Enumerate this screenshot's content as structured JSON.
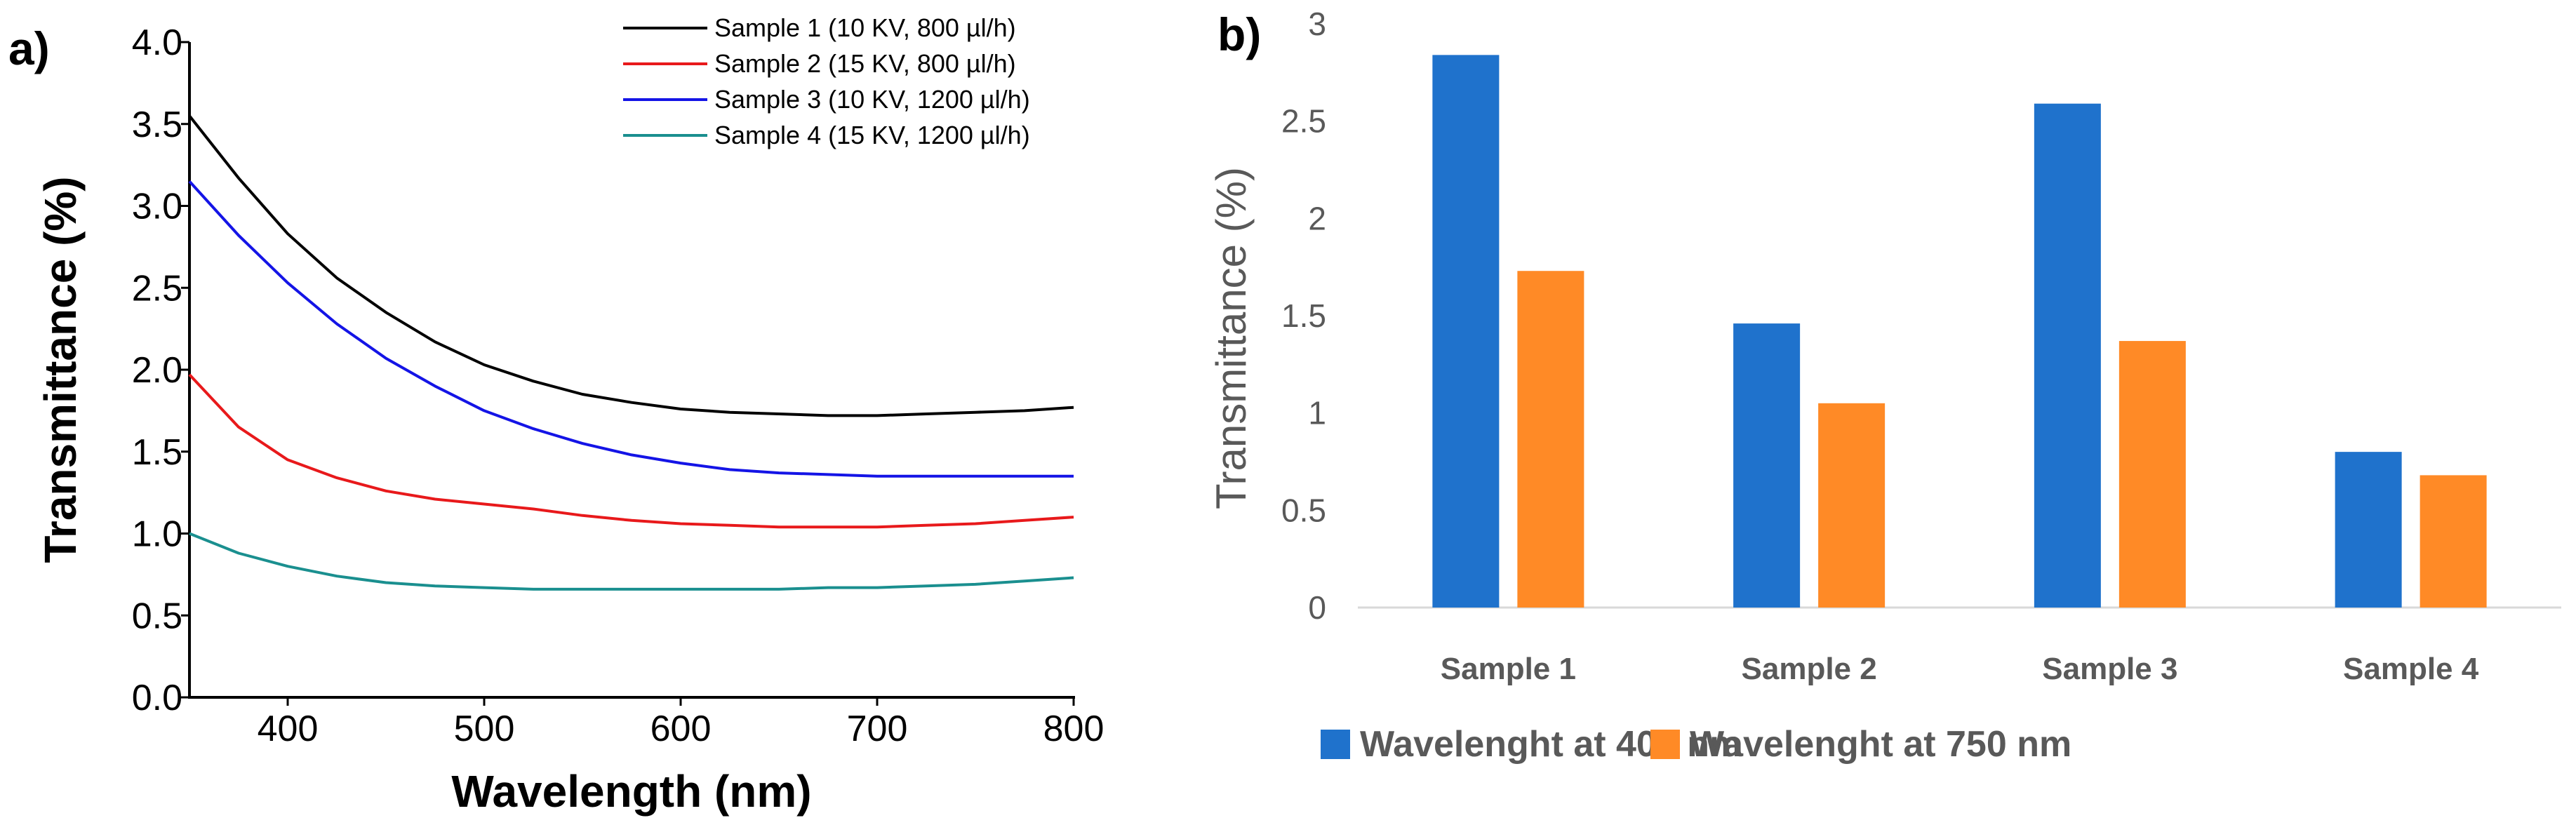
{
  "panels": {
    "a_label": "a)",
    "b_label": "b)"
  },
  "chart_data": [
    {
      "type": "line",
      "xlabel": "Wavelength (nm)",
      "ylabel": "Transmittance (%)",
      "xlim": [
        350,
        800
      ],
      "ylim": [
        0.0,
        4.0
      ],
      "x_ticks": [
        "400",
        "500",
        "600",
        "700",
        "800"
      ],
      "y_ticks": [
        "0.0",
        "0.5",
        "1.0",
        "1.5",
        "2.0",
        "2.5",
        "3.0",
        "3.5",
        "4.0"
      ],
      "legend_position": "top-right",
      "x": [
        350,
        375,
        400,
        425,
        450,
        475,
        500,
        525,
        550,
        575,
        600,
        625,
        650,
        675,
        700,
        725,
        750,
        775,
        800
      ],
      "series": [
        {
          "name": "Sample 1 (10 KV, 800 µl/h)",
          "color": "#000000",
          "values": [
            3.55,
            3.17,
            2.83,
            2.56,
            2.35,
            2.17,
            2.03,
            1.93,
            1.85,
            1.8,
            1.76,
            1.74,
            1.73,
            1.72,
            1.72,
            1.73,
            1.74,
            1.75,
            1.77
          ]
        },
        {
          "name": "Sample 2 (15 KV, 800 µl/h)",
          "color": "#e8191b",
          "values": [
            1.97,
            1.65,
            1.45,
            1.34,
            1.26,
            1.21,
            1.18,
            1.15,
            1.11,
            1.08,
            1.06,
            1.05,
            1.04,
            1.04,
            1.04,
            1.05,
            1.06,
            1.08,
            1.1
          ]
        },
        {
          "name": "Sample 3 (10 KV, 1200 µl/h)",
          "color": "#1414e6",
          "values": [
            3.15,
            2.82,
            2.53,
            2.28,
            2.07,
            1.9,
            1.75,
            1.64,
            1.55,
            1.48,
            1.43,
            1.39,
            1.37,
            1.36,
            1.35,
            1.35,
            1.35,
            1.35,
            1.35
          ]
        },
        {
          "name": "Sample 4 (15 KV, 1200 µl/h)",
          "color": "#1a8f8f",
          "values": [
            1.0,
            0.88,
            0.8,
            0.74,
            0.7,
            0.68,
            0.67,
            0.66,
            0.66,
            0.66,
            0.66,
            0.66,
            0.66,
            0.67,
            0.67,
            0.68,
            0.69,
            0.71,
            0.73
          ]
        }
      ]
    },
    {
      "type": "bar",
      "xlabel": "",
      "ylabel": "Transmittance (%)",
      "ylim": [
        0,
        3
      ],
      "y_ticks": [
        "0",
        "0.5",
        "1",
        "1.5",
        "2",
        "2.5",
        "3"
      ],
      "categories": [
        "Sample 1",
        "Sample 2",
        "Sample 3",
        "Sample 4"
      ],
      "legend_position": "bottom",
      "grid": false,
      "series": [
        {
          "name": "Wavelenght at 400 nm",
          "color": "#1f72cc",
          "values": [
            2.84,
            1.46,
            2.59,
            0.8
          ]
        },
        {
          "name": "Wavelenght at 750 nm",
          "color": "#ff8a26",
          "values": [
            1.73,
            1.05,
            1.37,
            0.68
          ]
        }
      ]
    }
  ]
}
